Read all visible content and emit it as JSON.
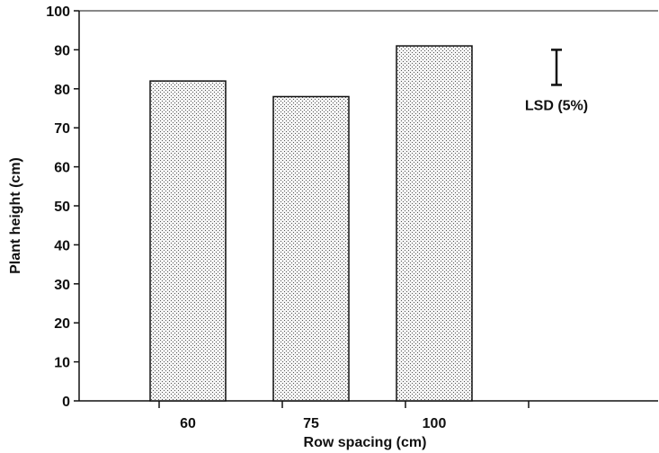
{
  "chart_data": {
    "type": "bar",
    "title": "",
    "xlabel": "Row spacing (cm)",
    "ylabel": "Plant height (cm)",
    "categories": [
      "60",
      "75",
      "100"
    ],
    "values": [
      82,
      78,
      91
    ],
    "ylim": [
      0,
      100
    ],
    "yticks": [
      0,
      10,
      20,
      30,
      40,
      50,
      60,
      70,
      80,
      90,
      100
    ],
    "grid": false,
    "bar_fill": "stippled gray",
    "lsd": {
      "label": "LSD (5%)",
      "high": 90,
      "low": 81
    }
  }
}
